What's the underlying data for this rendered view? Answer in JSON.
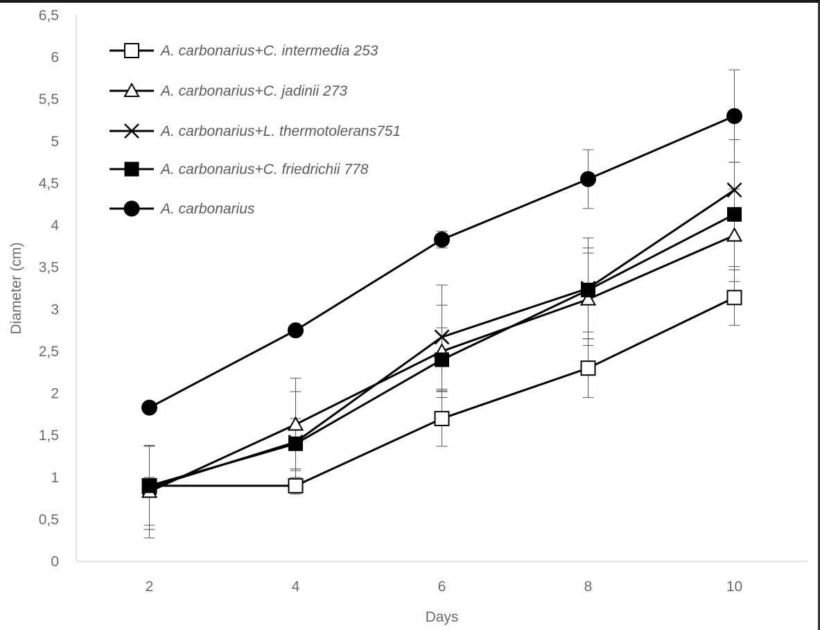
{
  "chart_data": {
    "type": "line",
    "xlabel": "Days",
    "ylabel": "Diameter (cm)",
    "x": [
      2,
      4,
      6,
      8,
      10
    ],
    "x_tick_labels": [
      "2",
      "4",
      "6",
      "8",
      "10"
    ],
    "ylim": [
      0,
      6.5
    ],
    "y_ticks": [
      0,
      0.5,
      1,
      1.5,
      2,
      2.5,
      3,
      3.5,
      4,
      4.5,
      5,
      5.5,
      6,
      6.5
    ],
    "y_tick_labels": [
      "0",
      "0,5",
      "1",
      "1,5",
      "2",
      "2,5",
      "3",
      "3,5",
      "4",
      "4,5",
      "5",
      "5,5",
      "6",
      "6,5"
    ],
    "grid": false,
    "legend_position": "top-left",
    "series": [
      {
        "name": "A. carbonarius+C. intermedia 253",
        "marker": "open-square",
        "values": [
          0.9,
          0.9,
          1.7,
          2.3,
          3.14
        ],
        "error": [
          0.1,
          0.1,
          0.33,
          0.35,
          0.33
        ]
      },
      {
        "name": "A. carbonarius+C. jadinii 273",
        "marker": "open-triangle",
        "values": [
          0.83,
          1.63,
          2.5,
          3.12,
          3.88
        ],
        "error": [
          0.55,
          0.55,
          0.55,
          0.55,
          0.55
        ]
      },
      {
        "name": "A. carbonarius+L. thermotolerans751",
        "marker": "x",
        "values": [
          0.88,
          1.42,
          2.67,
          3.25,
          4.42
        ],
        "error": [
          0.5,
          0.6,
          0.62,
          0.6,
          0.6
        ]
      },
      {
        "name": "A. carbonarius+C. friedrichii 778",
        "marker": "filled-square",
        "values": [
          0.9,
          1.4,
          2.4,
          3.23,
          4.13
        ],
        "error": [
          0.47,
          0.3,
          0.38,
          0.5,
          0.62
        ]
      },
      {
        "name": "A. carbonarius",
        "marker": "filled-circle",
        "values": [
          1.83,
          2.75,
          3.83,
          4.55,
          5.3
        ],
        "error": [
          0.02,
          0.02,
          0.1,
          0.35,
          0.55
        ]
      }
    ]
  }
}
